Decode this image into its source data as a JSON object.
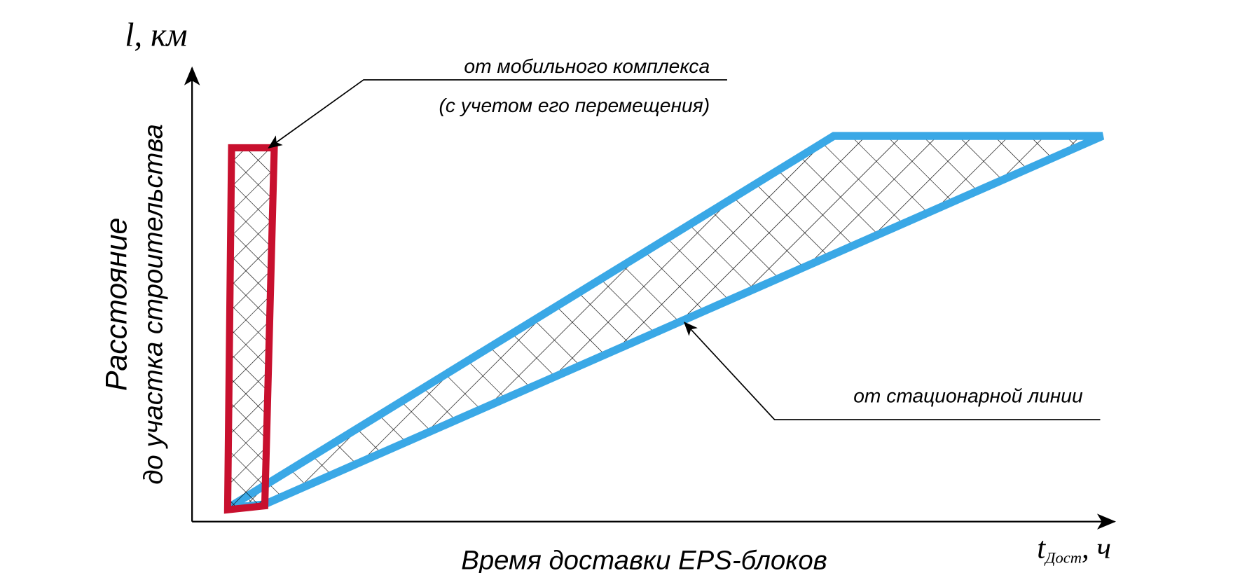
{
  "y_axis": {
    "symbol": "l",
    "unit": ", км",
    "label_line1": "Расстояние",
    "label_line2": "до участка строительства"
  },
  "x_axis": {
    "symbol": "t",
    "subscript": "Дост",
    "unit": ", ч",
    "label": "Время доставки EPS-блоков"
  },
  "regions": {
    "mobile": {
      "label_line1": "от мобильного комплекса",
      "label_line2": "(с учетом его перемещения)",
      "color": "#c8102e"
    },
    "stationary": {
      "label": "от стационарной линии",
      "color": "#3aa8e6"
    }
  }
}
